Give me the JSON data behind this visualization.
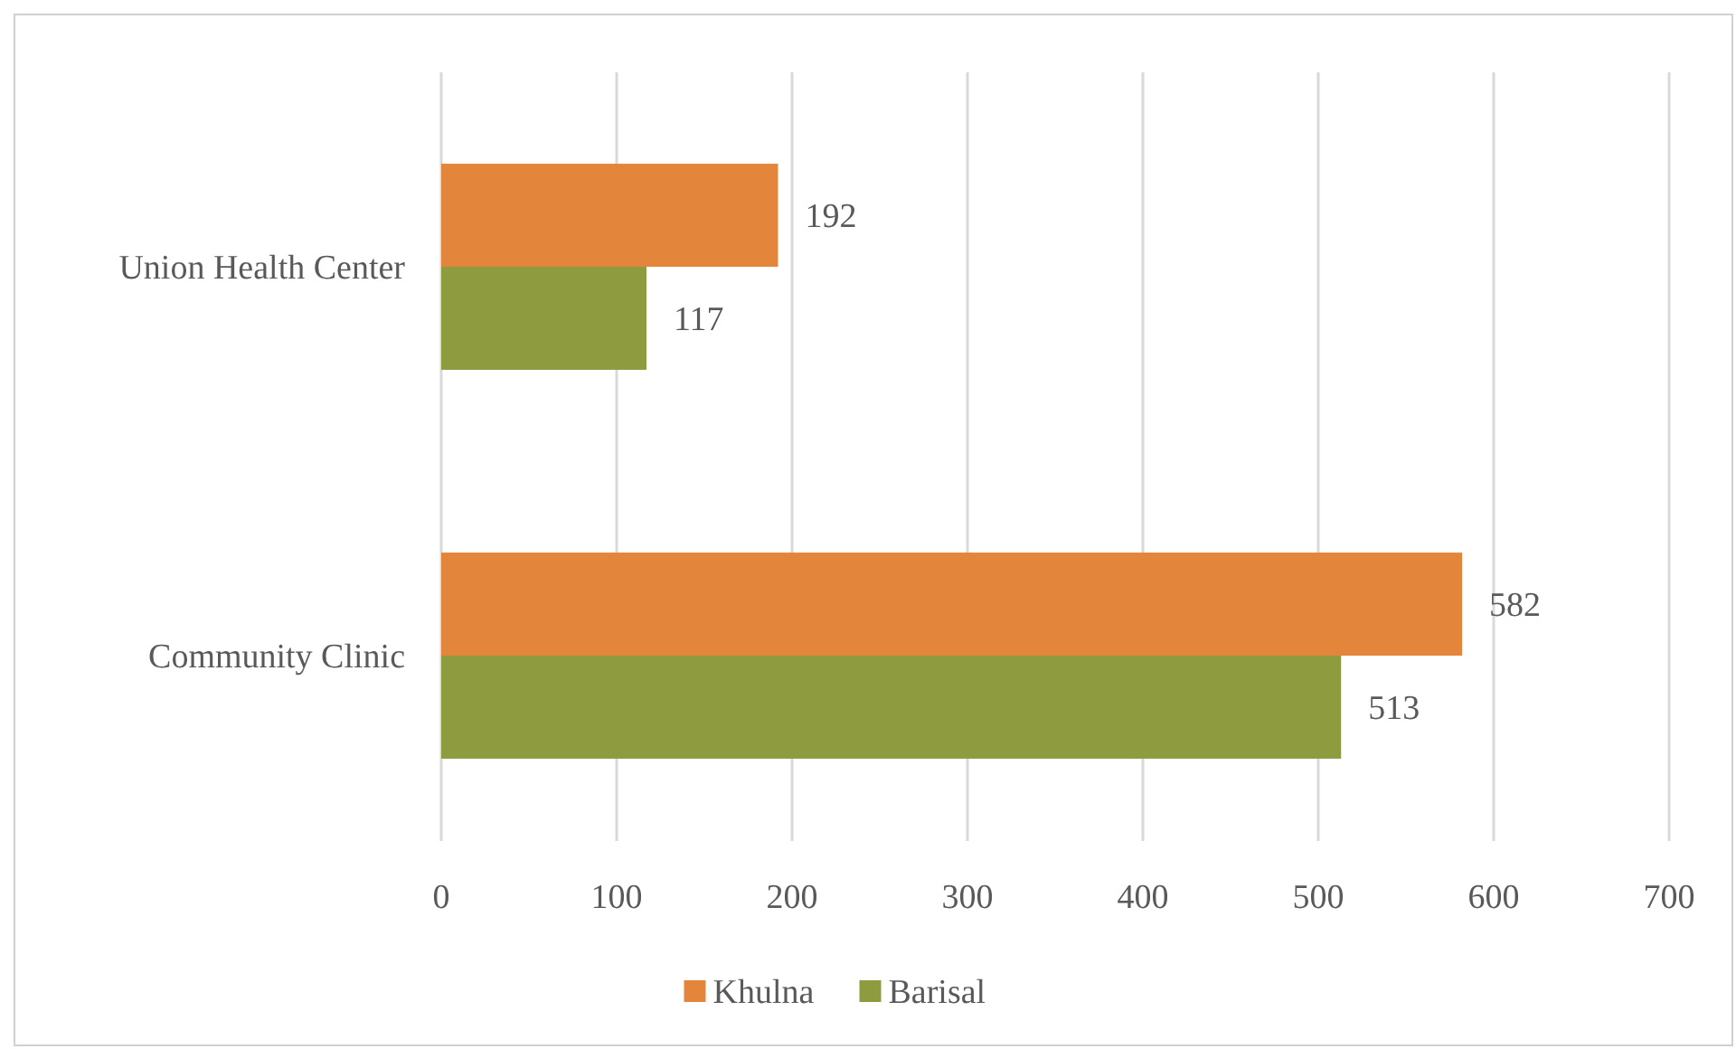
{
  "chart_data": {
    "type": "bar",
    "orientation": "horizontal",
    "categories": [
      "Union Health Center",
      "Community Clinic"
    ],
    "series": [
      {
        "name": "Khulna",
        "color": "#e3853a",
        "values": [
          192,
          582
        ]
      },
      {
        "name": "Barisal",
        "color": "#8e9b3f",
        "values": [
          117,
          513
        ]
      }
    ],
    "xlim": [
      0,
      700
    ],
    "xticks": [
      0,
      100,
      200,
      300,
      400,
      500,
      600,
      700
    ],
    "grid": "x",
    "legend": "bottom",
    "data_labels": true
  }
}
